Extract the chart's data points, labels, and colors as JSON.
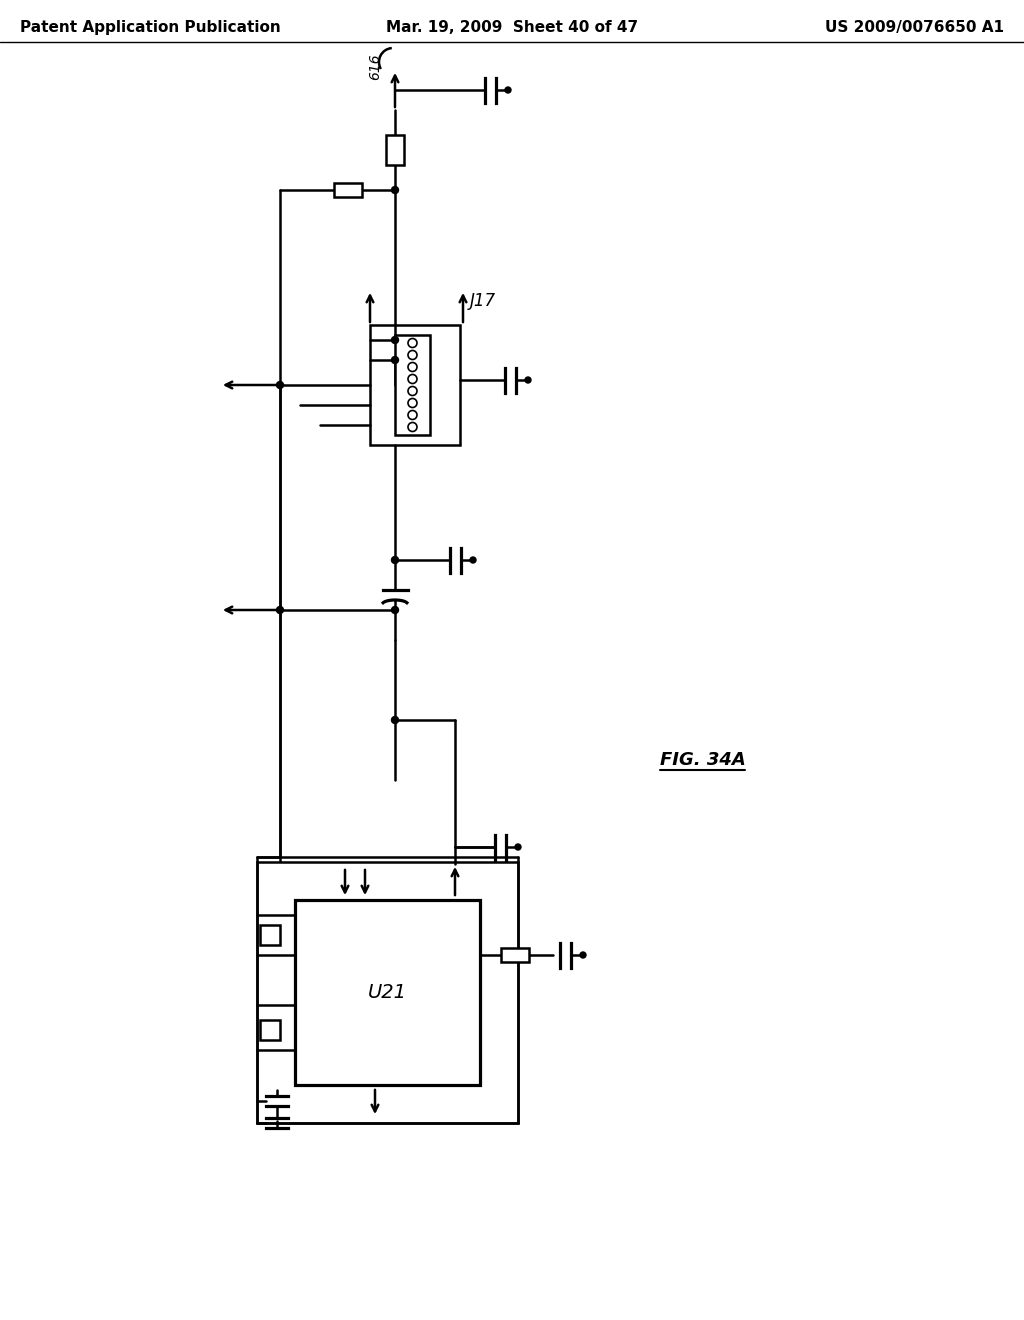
{
  "title_left": "Patent Application Publication",
  "title_center": "Mar. 19, 2009  Sheet 40 of 47",
  "title_right": "US 2009/0076650 A1",
  "fig_label": "FIG. 34A",
  "bg_color": "#ffffff",
  "line_color": "#000000",
  "header_fontsize": 11,
  "label_616": "616",
  "label_J17": "J17",
  "label_U21": "U21"
}
